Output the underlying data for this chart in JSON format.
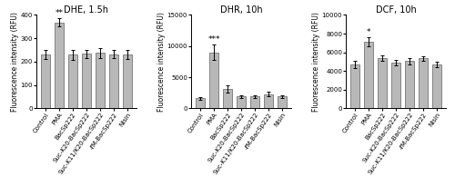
{
  "panels": [
    {
      "title": "DHE, 1.5h",
      "ylabel": "Fluorescence intensity (RFU)",
      "ylim": [
        0,
        400
      ],
      "yticks": [
        0,
        100,
        200,
        300,
        400
      ],
      "categories": [
        "Control",
        "PMA",
        "BacSp222",
        "Suc-K20-BacSp222",
        "Suc-K11/K20-BacSp222",
        "-fM-BacSp222",
        "Nisin"
      ],
      "values": [
        230,
        368,
        230,
        233,
        237,
        232,
        232
      ],
      "errors": [
        20,
        18,
        22,
        18,
        22,
        18,
        20
      ],
      "significance": [
        "",
        "**",
        "",
        "",
        "",
        "",
        ""
      ]
    },
    {
      "title": "DHR, 10h",
      "ylabel": "Fluorescence intensity (RFU)",
      "ylim": [
        0,
        15000
      ],
      "yticks": [
        0,
        5000,
        10000,
        15000
      ],
      "categories": [
        "Control",
        "PMA",
        "BacSp222",
        "Suc-K20-BacSp222",
        "Suc-K11/K20-BacSp222",
        "-fM-BacSp222",
        "Nisin"
      ],
      "values": [
        1600,
        9000,
        3100,
        1900,
        1900,
        2300,
        1900
      ],
      "errors": [
        200,
        1200,
        600,
        200,
        200,
        400,
        200
      ],
      "significance": [
        "",
        "***",
        "",
        "",
        "",
        "",
        ""
      ]
    },
    {
      "title": "DCF, 10h",
      "ylabel": "Fluorescence intensity (RFU)",
      "ylim": [
        0,
        10000
      ],
      "yticks": [
        0,
        2000,
        4000,
        6000,
        8000,
        10000
      ],
      "categories": [
        "Control",
        "PMA",
        "BacSp222",
        "Suc-K20-BacSp222",
        "Suc-K11/K20-BacSp222",
        "-fM-BacSp222",
        "Nisin"
      ],
      "values": [
        4700,
        7100,
        5400,
        4900,
        5050,
        5350,
        4700
      ],
      "errors": [
        400,
        500,
        300,
        300,
        350,
        250,
        300
      ],
      "significance": [
        "",
        "*",
        "",
        "",
        "",
        "",
        ""
      ]
    }
  ],
  "bar_color": "#b8b8b8",
  "bar_edge_color": "#606060",
  "background_color": "#ffffff",
  "title_fontsize": 7,
  "label_fontsize": 5.5,
  "tick_fontsize": 5,
  "sig_fontsize": 6.5,
  "bar_width": 0.65
}
